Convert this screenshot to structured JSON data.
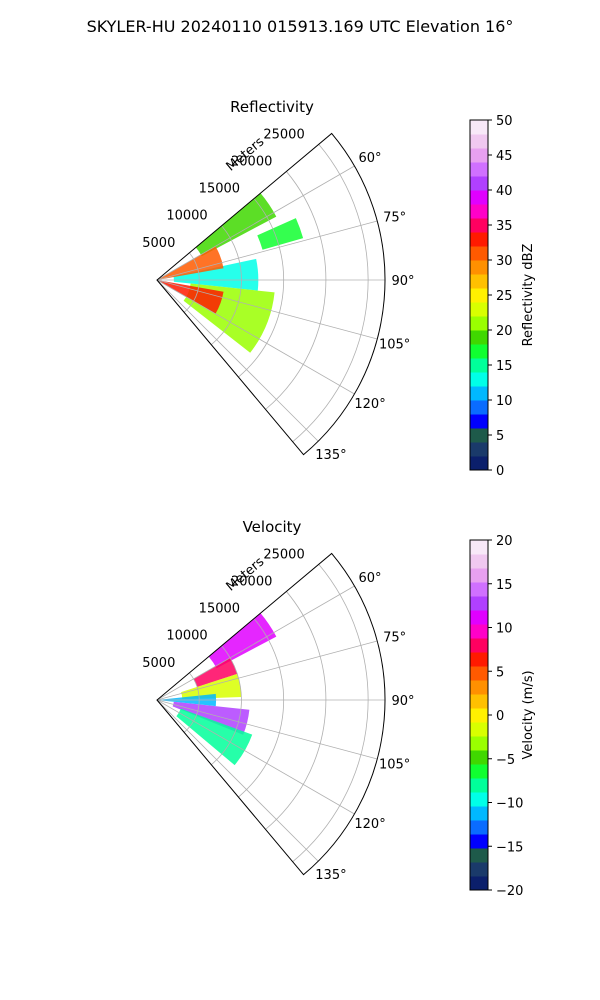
{
  "suptitle": "SKYLER-HU  20240110  015913.169 UTC Elevation 16°",
  "chart_data": [
    {
      "type": "heatmap",
      "projection": "polar-sector",
      "title": "Reflectivity",
      "range_axis_label": "Meters",
      "range_ticks": [
        5000,
        10000,
        15000,
        20000,
        25000
      ],
      "range_max": 27000,
      "azimuth_range_deg": [
        50,
        140
      ],
      "azimuth_tick_labels": [
        "60°",
        "75°",
        "90°",
        "105°",
        "120°",
        "135°"
      ],
      "grid": true,
      "colorbar": {
        "label": "Reflectivity dBZ",
        "range": [
          0,
          50
        ],
        "ticks": [
          "0",
          "5",
          "10",
          "15",
          "20",
          "25",
          "30",
          "35",
          "40",
          "45",
          "50"
        ],
        "colors": [
          "#0b1f6b",
          "#1a3a6a",
          "#1e5a4a",
          "#0000ff",
          "#0a6cff",
          "#00b8ff",
          "#00ffe8",
          "#00ff9a",
          "#10ff30",
          "#40d800",
          "#9aff00",
          "#d8ff00",
          "#fff000",
          "#ffc000",
          "#ff9000",
          "#ff5a00",
          "#ff1a00",
          "#ff0060",
          "#ff00c8",
          "#e000ff",
          "#b040ff",
          "#d070ff",
          "#e8a0f0",
          "#f0c8f0",
          "#f8e8f8"
        ]
      },
      "echo_regions": [
        {
          "az": [
            48,
            62
          ],
          "range": [
            6000,
            16000
          ],
          "value": 18
        },
        {
          "az": [
            66,
            74
          ],
          "range": [
            13000,
            18000
          ],
          "value": 17
        },
        {
          "az": [
            78,
            96
          ],
          "range": [
            2000,
            12000
          ],
          "value": 13
        },
        {
          "az": [
            96,
            128
          ],
          "range": [
            4000,
            14000
          ],
          "value": 20
        },
        {
          "az": [
            60,
            80
          ],
          "range": [
            0,
            8000
          ],
          "value": 30
        },
        {
          "az": [
            100,
            120
          ],
          "range": [
            0,
            8000
          ],
          "value": 32
        }
      ]
    },
    {
      "type": "heatmap",
      "projection": "polar-sector",
      "title": "Velocity",
      "range_axis_label": "Meters",
      "range_ticks": [
        5000,
        10000,
        15000,
        20000,
        25000
      ],
      "range_max": 27000,
      "azimuth_range_deg": [
        50,
        140
      ],
      "azimuth_tick_labels": [
        "60°",
        "75°",
        "90°",
        "105°",
        "120°",
        "135°"
      ],
      "grid": true,
      "colorbar": {
        "label": "Velocity (m/s)",
        "range": [
          -20,
          20
        ],
        "ticks": [
          "−20",
          "−15",
          "−10",
          "−5",
          "0",
          "5",
          "10",
          "15",
          "20"
        ],
        "colors": [
          "#0b1f6b",
          "#1a3a6a",
          "#1e5a4a",
          "#0000ff",
          "#0a6cff",
          "#00b8ff",
          "#00ffe8",
          "#00ff9a",
          "#10ff30",
          "#40d800",
          "#9aff00",
          "#d8ff00",
          "#fff000",
          "#ffc000",
          "#ff9000",
          "#ff5a00",
          "#ff1a00",
          "#ff0060",
          "#ff00c8",
          "#e000ff",
          "#b040ff",
          "#d070ff",
          "#e8a0f0",
          "#f0c8f0",
          "#f8e8f8"
        ]
      },
      "echo_regions": [
        {
          "az": [
            48,
            62
          ],
          "range": [
            8000,
            16000
          ],
          "value": 11
        },
        {
          "az": [
            60,
            72
          ],
          "range": [
            5000,
            10000
          ],
          "value": 8
        },
        {
          "az": [
            72,
            88
          ],
          "range": [
            3000,
            10000
          ],
          "value": -2
        },
        {
          "az": [
            84,
            96
          ],
          "range": [
            0,
            7000
          ],
          "value": -12
        },
        {
          "az": [
            96,
            112
          ],
          "range": [
            2000,
            11000
          ],
          "value": 12
        },
        {
          "az": [
            110,
            130
          ],
          "range": [
            3000,
            12000
          ],
          "value": -8
        }
      ]
    }
  ]
}
